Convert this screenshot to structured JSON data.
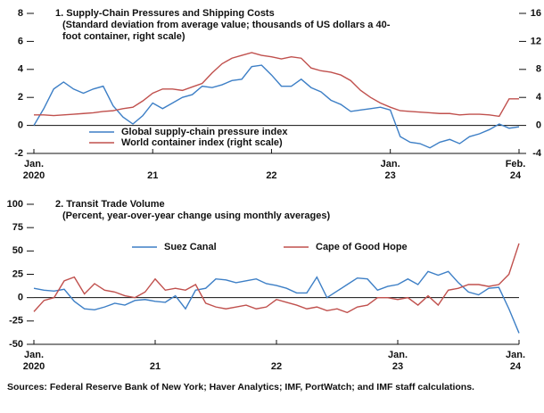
{
  "chart_data": [
    {
      "type": "line",
      "title": "1. Supply-Chain Pressures and Shipping Costs",
      "subtitle": "(Standard deviation from average value; thousands of US dollars a 40-foot container, right scale)",
      "categories": [
        "Jan.\n2020",
        null,
        null,
        null,
        null,
        null,
        null,
        null,
        null,
        null,
        null,
        null,
        "21",
        null,
        null,
        null,
        null,
        null,
        null,
        null,
        null,
        null,
        null,
        null,
        "22",
        null,
        null,
        null,
        null,
        null,
        null,
        null,
        null,
        null,
        null,
        null,
        "Jan.\n23",
        null,
        null,
        null,
        null,
        null,
        null,
        null,
        null,
        null,
        null,
        null,
        null,
        "Feb.\n24"
      ],
      "series": [
        {
          "name": "Global supply-chain pressure index",
          "color": "#3d7fc6",
          "values": [
            0,
            1.2,
            2.6,
            3.1,
            2.6,
            2.3,
            2.6,
            2.8,
            1.4,
            0.6,
            0.1,
            0.7,
            1.6,
            1.2,
            1.6,
            2.0,
            2.2,
            2.8,
            2.7,
            2.9,
            3.2,
            3.3,
            4.2,
            4.3,
            3.6,
            2.8,
            2.8,
            3.3,
            2.7,
            2.4,
            1.8,
            1.5,
            1.0,
            1.1,
            1.2,
            1.3,
            1.1,
            -0.8,
            -1.2,
            -1.3,
            -1.6,
            -1.2,
            -1.0,
            -1.3,
            -0.8,
            -0.6,
            -0.3,
            0.1,
            -0.2,
            -0.1
          ]
        },
        {
          "name": "World container index (right scale)",
          "color": "#c0504d",
          "axis": "y2",
          "values": [
            1.5,
            1.5,
            1.4,
            1.5,
            1.6,
            1.7,
            1.8,
            2.0,
            2.1,
            2.4,
            2.6,
            3.5,
            4.6,
            5.2,
            5.2,
            5.0,
            5.5,
            6.0,
            7.5,
            8.8,
            9.6,
            10.0,
            10.4,
            10.0,
            9.8,
            9.5,
            9.8,
            9.6,
            8.2,
            7.8,
            7.6,
            7.2,
            6.4,
            5.0,
            4.0,
            3.2,
            2.6,
            2.1,
            2.0,
            1.9,
            1.8,
            1.7,
            1.7,
            1.5,
            1.6,
            1.6,
            1.5,
            1.3,
            3.8,
            3.8
          ]
        }
      ],
      "ylim": [
        -2,
        8
      ],
      "yticks": [
        -2,
        0,
        2,
        4,
        6,
        8
      ],
      "y2lim": [
        -4,
        16
      ],
      "y2ticks": [
        -4,
        0,
        4,
        8,
        12,
        16
      ],
      "zeroline": true
    },
    {
      "type": "line",
      "title": "2. Transit Trade Volume",
      "subtitle": "(Percent, year-over-year change using monthly averages)",
      "categories": [
        "Jan.\n2020",
        null,
        null,
        null,
        null,
        null,
        null,
        null,
        null,
        null,
        null,
        null,
        "21",
        null,
        null,
        null,
        null,
        null,
        null,
        null,
        null,
        null,
        null,
        null,
        "22",
        null,
        null,
        null,
        null,
        null,
        null,
        null,
        null,
        null,
        null,
        null,
        "Jan.\n23",
        null,
        null,
        null,
        null,
        null,
        null,
        null,
        null,
        null,
        null,
        null,
        "Jan.\n24"
      ],
      "series": [
        {
          "name": "Suez Canal",
          "color": "#3d7fc6",
          "values": [
            10,
            8,
            7,
            9,
            -4,
            -12,
            -13,
            -10,
            -6,
            -8,
            -3,
            -2,
            -4,
            -5,
            2,
            -12,
            8,
            10,
            20,
            19,
            16,
            18,
            20,
            15,
            13,
            10,
            5,
            5,
            22,
            0,
            7,
            14,
            21,
            20,
            8,
            12,
            14,
            20,
            14,
            28,
            24,
            28,
            16,
            6,
            3,
            10,
            11,
            -12,
            -38
          ]
        },
        {
          "name": "Cape of Good Hope",
          "color": "#c0504d",
          "values": [
            -15,
            -3,
            0,
            18,
            22,
            4,
            15,
            8,
            6,
            2,
            0,
            6,
            20,
            8,
            10,
            8,
            14,
            -6,
            -10,
            -12,
            -10,
            -8,
            -12,
            -10,
            -2,
            -5,
            -8,
            -12,
            -10,
            -14,
            -12,
            -16,
            -10,
            -8,
            0,
            0,
            -2,
            0,
            -8,
            2,
            -8,
            8,
            10,
            14,
            14,
            12,
            14,
            25,
            58
          ]
        }
      ],
      "ylim": [
        -50,
        100
      ],
      "yticks": [
        -50,
        -25,
        0,
        25,
        50,
        75,
        100
      ],
      "zeroline": true
    }
  ],
  "source": "Sources: Federal Reserve Bank of New York; Haver Analytics; IMF, PortWatch; and IMF staff calculations."
}
